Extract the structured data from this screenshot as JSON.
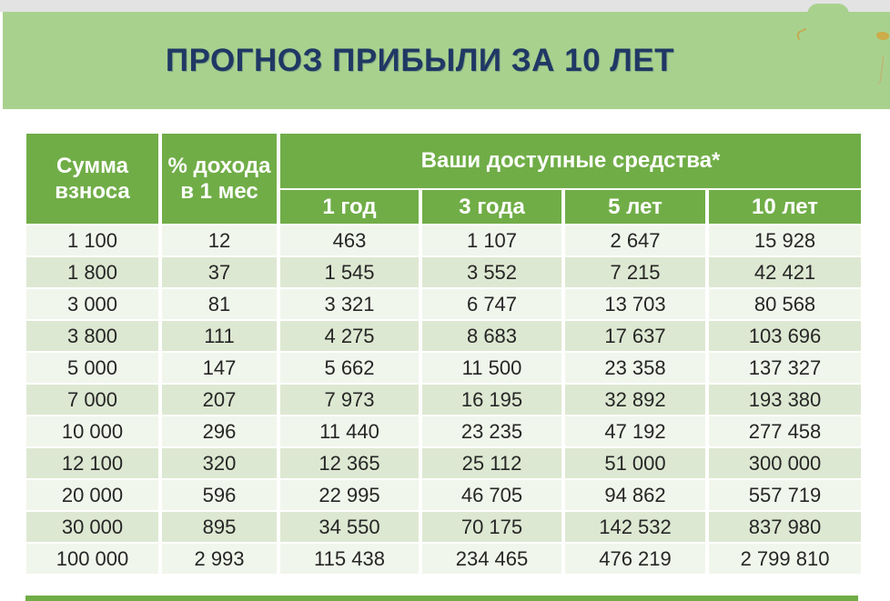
{
  "title": "ПРОГНОЗ ПРИБЫЛИ ЗА 10 ЛЕТ",
  "table": {
    "col_sum": "Сумма взноса",
    "col_percent": "% дохода в 1 мес",
    "group_header": "Ваши доступные средства*",
    "period_headers": [
      "1 год",
      "3 года",
      "5 лет",
      "10 лет"
    ]
  },
  "chart_data": {
    "type": "table",
    "title": "ПРОГНОЗ ПРИБЫЛИ ЗА 10 ЛЕТ",
    "columns": [
      "Сумма взноса",
      "% дохода в 1 мес",
      "1 год",
      "3 года",
      "5 лет",
      "10 лет"
    ],
    "column_group": {
      "label": "Ваши доступные средства*",
      "spans": [
        "1 год",
        "3 года",
        "5 лет",
        "10 лет"
      ]
    },
    "rows": [
      [
        "1 100",
        "12",
        "463",
        "1 107",
        "2 647",
        "15 928"
      ],
      [
        "1 800",
        "37",
        "1 545",
        "3 552",
        "7 215",
        "42 421"
      ],
      [
        "3 000",
        "81",
        "3 321",
        "6 747",
        "13 703",
        "80 568"
      ],
      [
        "3 800",
        "111",
        "4 275",
        "8 683",
        "17 637",
        "103 696"
      ],
      [
        "5 000",
        "147",
        "5 662",
        "11 500",
        "23 358",
        "137 327"
      ],
      [
        "7 000",
        "207",
        "7 973",
        "16 195",
        "32 892",
        "193 380"
      ],
      [
        "10 000",
        "296",
        "11 440",
        "23 235",
        "47 192",
        "277 458"
      ],
      [
        "12 100",
        "320",
        "12 365",
        "25 112",
        "51 000",
        "300 000"
      ],
      [
        "20 000",
        "596",
        "22 995",
        "46 705",
        "94 862",
        "557 719"
      ],
      [
        "30 000",
        "895",
        "34 550",
        "70 175",
        "142 532",
        "837 980"
      ],
      [
        "100 000",
        "2 993",
        "115 438",
        "234 465",
        "476 219",
        "2 799 810"
      ]
    ]
  },
  "colors": {
    "title_band": "#a9d18e",
    "title_text": "#1f3864",
    "header_green": "#70ad47",
    "row_light": "#f1f6ec",
    "row_dark": "#dde8d2",
    "body_text": "#262626",
    "top_strip": "#e3e3e3"
  }
}
